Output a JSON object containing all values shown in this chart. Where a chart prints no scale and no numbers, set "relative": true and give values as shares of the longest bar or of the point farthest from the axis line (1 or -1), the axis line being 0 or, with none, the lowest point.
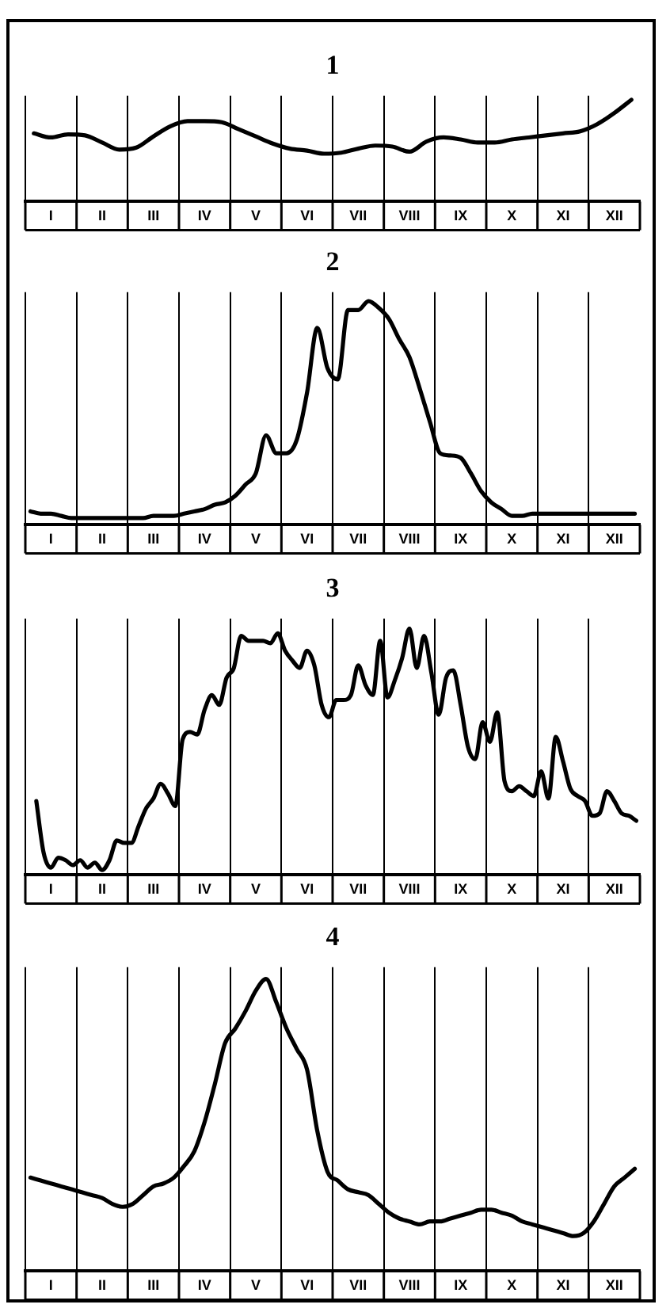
{
  "chart_data": [
    {
      "type": "line",
      "title": "1",
      "relative": true,
      "grid": "x",
      "color": "#000000",
      "categories": [
        null,
        "I",
        null,
        null,
        "II",
        null,
        null,
        "III",
        null,
        null,
        "IV",
        null,
        null,
        "V",
        null,
        null,
        "VI",
        null,
        null,
        "VII",
        null,
        null,
        "VIII",
        null,
        null,
        "IX",
        null,
        null,
        "X",
        null,
        null,
        "XI",
        null,
        null,
        "XII",
        null
      ],
      "values": [
        0.67,
        0.63,
        0.66,
        0.65,
        0.58,
        0.51,
        0.53,
        0.64,
        0.74,
        0.79,
        0.79,
        0.78,
        0.71,
        0.64,
        0.57,
        0.52,
        0.5,
        0.47,
        0.48,
        0.52,
        0.55,
        0.54,
        0.49,
        0.59,
        0.63,
        0.61,
        0.58,
        0.58,
        0.61,
        0.63,
        0.65,
        0.67,
        0.69,
        0.76,
        0.87,
        1
      ]
    },
    {
      "type": "line",
      "title": "2",
      "relative": true,
      "grid": "x",
      "color": "#000000",
      "categories": [
        null,
        null,
        "I",
        null,
        null,
        null,
        null,
        "II",
        null,
        null,
        null,
        null,
        "III",
        null,
        null,
        null,
        null,
        "IV",
        null,
        null,
        null,
        null,
        "V",
        null,
        null,
        null,
        null,
        "VI",
        null,
        null,
        null,
        null,
        "VII",
        null,
        null,
        null,
        null,
        "VIII",
        null,
        null,
        null,
        null,
        "IX",
        null,
        null,
        null,
        null,
        "X",
        null,
        null,
        null,
        null,
        "XI",
        null,
        null,
        null,
        null,
        "XII",
        null,
        null
      ],
      "values": [
        0.06,
        0.05,
        0.05,
        0.04,
        0.03,
        0.03,
        0.03,
        0.03,
        0.03,
        0.03,
        0.03,
        0.03,
        0.04,
        0.04,
        0.04,
        0.05,
        0.06,
        0.07,
        0.09,
        0.1,
        0.13,
        0.18,
        0.23,
        0.4,
        0.32,
        0.32,
        0.38,
        0.59,
        0.88,
        0.7,
        0.65,
        0.96,
        0.96,
        1,
        0.97,
        0.92,
        0.83,
        0.75,
        0.61,
        0.46,
        0.32,
        0.31,
        0.3,
        0.23,
        0.15,
        0.1,
        0.07,
        0.04,
        0.04,
        0.05,
        0.05,
        0.05,
        0.05,
        0.05,
        0.05,
        0.05,
        0.05,
        0.05,
        0.05,
        0.05
      ]
    },
    {
      "type": "line",
      "title": "3",
      "relative": true,
      "grid": "x",
      "color": "#000000",
      "categories": [
        null,
        null,
        null,
        "I",
        null,
        null,
        null,
        null,
        null,
        null,
        "II",
        null,
        null,
        null,
        null,
        null,
        null,
        "III",
        null,
        null,
        null,
        null,
        null,
        null,
        "IV",
        null,
        null,
        null,
        null,
        null,
        null,
        "V",
        null,
        null,
        null,
        null,
        null,
        null,
        "VI",
        null,
        null,
        null,
        null,
        null,
        null,
        "VII",
        null,
        null,
        null,
        null,
        null,
        null,
        "VIII",
        null,
        null,
        null,
        null,
        null,
        null,
        "IX",
        null,
        null,
        null,
        null,
        null,
        null,
        "X",
        null,
        null,
        null,
        null,
        null,
        null,
        "XI",
        null,
        null,
        null,
        null,
        null,
        null,
        "XII",
        null,
        null,
        null
      ],
      "values": [
        null,
        0.3,
        0.09,
        0.03,
        0.07,
        0.06,
        0.04,
        0.06,
        0.03,
        0.05,
        0.02,
        0.06,
        0.14,
        0.13,
        0.13,
        0.2,
        0.27,
        0.31,
        0.37,
        0.33,
        0.28,
        0.55,
        0.58,
        0.57,
        0.67,
        0.73,
        0.69,
        0.8,
        0.84,
        0.97,
        0.95,
        0.95,
        0.95,
        0.94,
        0.98,
        0.91,
        0.87,
        0.84,
        0.91,
        0.85,
        0.69,
        0.64,
        0.71,
        0.71,
        0.73,
        0.85,
        0.77,
        0.73,
        0.95,
        0.72,
        0.79,
        0.88,
        1,
        0.84,
        0.97,
        0.82,
        0.65,
        0.8,
        0.83,
        0.69,
        0.52,
        0.47,
        0.62,
        0.54,
        0.66,
        0.38,
        0.34,
        0.36,
        0.34,
        0.32,
        0.42,
        0.31,
        0.56,
        0.46,
        0.35,
        0.32,
        0.3,
        0.24,
        0.25,
        0.34,
        0.3,
        0.25,
        0.24,
        0.22
      ]
    },
    {
      "type": "line",
      "title": "4",
      "relative": true,
      "grid": "x",
      "color": "#000000",
      "categories": [
        null,
        null,
        "I",
        null,
        null,
        null,
        null,
        "II",
        null,
        null,
        null,
        null,
        "III",
        null,
        null,
        null,
        null,
        "IV",
        null,
        null,
        null,
        null,
        "V",
        null,
        null,
        null,
        null,
        "VI",
        null,
        null,
        null,
        null,
        "VII",
        null,
        null,
        null,
        null,
        "VIII",
        null,
        null,
        null,
        null,
        "IX",
        null,
        null,
        null,
        null,
        "X",
        null,
        null,
        null,
        null,
        "XI",
        null,
        null,
        null,
        null,
        "XII",
        null,
        null
      ],
      "values": [
        0.32,
        0.31,
        0.3,
        0.29,
        0.28,
        0.27,
        0.26,
        0.25,
        0.23,
        0.22,
        0.23,
        0.26,
        0.29,
        0.3,
        0.32,
        0.36,
        0.41,
        0.51,
        0.64,
        0.78,
        0.83,
        0.89,
        0.96,
        1,
        0.92,
        0.83,
        0.76,
        0.69,
        0.48,
        0.34,
        0.31,
        0.28,
        0.27,
        0.26,
        0.23,
        0.2,
        0.18,
        0.17,
        0.16,
        0.17,
        0.17,
        0.18,
        0.19,
        0.2,
        0.21,
        0.21,
        0.2,
        0.19,
        0.17,
        0.16,
        0.15,
        0.14,
        0.13,
        0.12,
        0.13,
        0.17,
        0.23,
        0.29,
        0.32,
        0.35
      ]
    }
  ]
}
